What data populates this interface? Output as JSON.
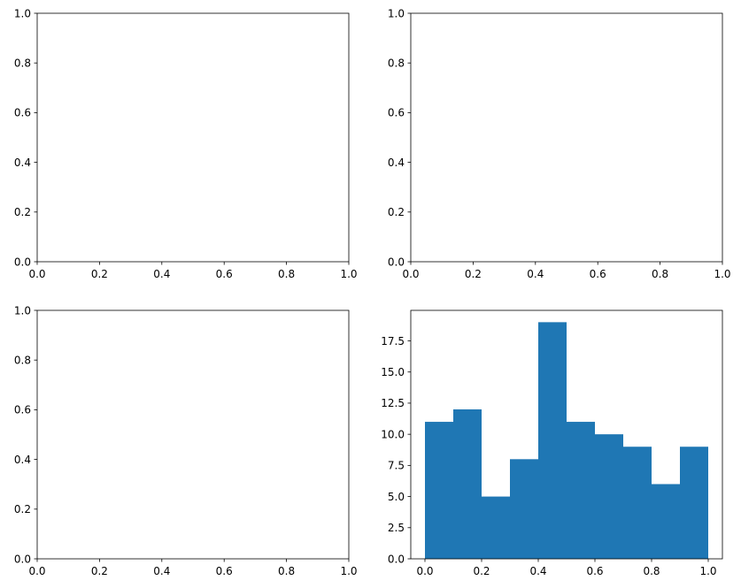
{
  "chart_data": [
    {
      "type": "scatter",
      "xlim": [
        0,
        1
      ],
      "ylim": [
        0,
        1
      ],
      "xticks": [
        0.0,
        0.2,
        0.4,
        0.6,
        0.8,
        1.0
      ],
      "yticks": [
        0.0,
        0.2,
        0.4,
        0.6,
        0.8,
        1.0
      ],
      "xtick_labels": [
        "0.0",
        "0.2",
        "0.4",
        "0.6",
        "0.8",
        "1.0"
      ],
      "ytick_labels": [
        "0.0",
        "0.2",
        "0.4",
        "0.6",
        "0.8",
        "1.0"
      ],
      "grid": false,
      "series": []
    },
    {
      "type": "scatter",
      "xlim": [
        0,
        1
      ],
      "ylim": [
        0,
        1
      ],
      "xticks": [
        0.0,
        0.2,
        0.4,
        0.6,
        0.8,
        1.0
      ],
      "yticks": [
        0.0,
        0.2,
        0.4,
        0.6,
        0.8,
        1.0
      ],
      "xtick_labels": [
        "0.0",
        "0.2",
        "0.4",
        "0.6",
        "0.8",
        "1.0"
      ],
      "ytick_labels": [
        "0.0",
        "0.2",
        "0.4",
        "0.6",
        "0.8",
        "1.0"
      ],
      "grid": false,
      "series": []
    },
    {
      "type": "scatter",
      "xlim": [
        0,
        1
      ],
      "ylim": [
        0,
        1
      ],
      "xticks": [
        0.0,
        0.2,
        0.4,
        0.6,
        0.8,
        1.0
      ],
      "yticks": [
        0.0,
        0.2,
        0.4,
        0.6,
        0.8,
        1.0
      ],
      "xtick_labels": [
        "0.0",
        "0.2",
        "0.4",
        "0.6",
        "0.8",
        "1.0"
      ],
      "ytick_labels": [
        "0.0",
        "0.2",
        "0.4",
        "0.6",
        "0.8",
        "1.0"
      ],
      "grid": false,
      "series": []
    },
    {
      "type": "bar",
      "color": "#1f77b4",
      "bin_edges": [
        0.0,
        0.1,
        0.2,
        0.3,
        0.4,
        0.5,
        0.6,
        0.7,
        0.8,
        0.9,
        1.0
      ],
      "values": [
        11,
        12,
        5,
        8,
        19,
        11,
        10,
        9,
        6,
        9
      ],
      "xlim": [
        -0.05,
        1.05
      ],
      "ylim": [
        0,
        19.95
      ],
      "xticks": [
        0.0,
        0.2,
        0.4,
        0.6,
        0.8,
        1.0
      ],
      "yticks": [
        0.0,
        2.5,
        5.0,
        7.5,
        10.0,
        12.5,
        15.0,
        17.5
      ],
      "xtick_labels": [
        "0.0",
        "0.2",
        "0.4",
        "0.6",
        "0.8",
        "1.0"
      ],
      "ytick_labels": [
        "0.0",
        "2.5",
        "5.0",
        "7.5",
        "10.0",
        "12.5",
        "15.0",
        "17.5"
      ],
      "grid": false
    }
  ]
}
